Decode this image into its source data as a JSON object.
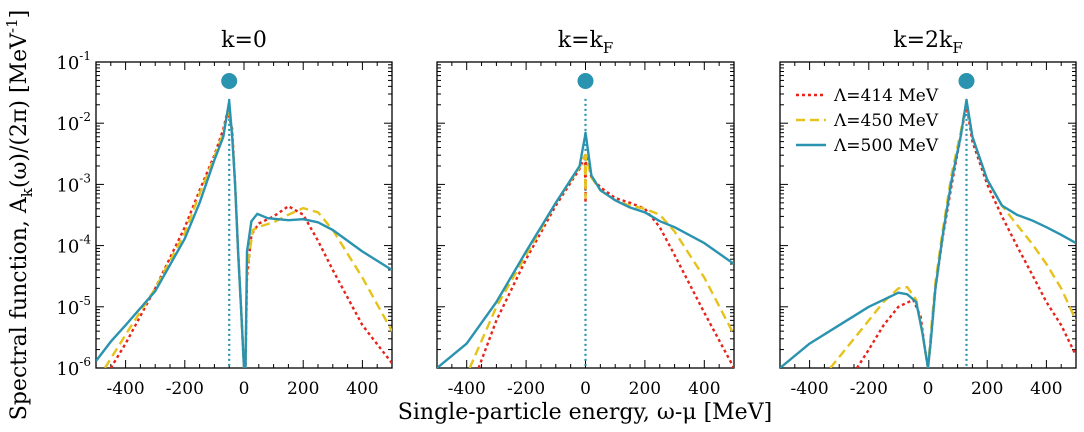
{
  "chart_data": {
    "type": "line",
    "ylabel_main": "Spectral function, A",
    "ylabel_sub": "k",
    "ylabel_rest": "(ω)/(2π) [MeV",
    "ylabel_exp": "-1",
    "ylabel_close": "]",
    "xlabel": "Single-particle energy, ω-μ [MeV]",
    "xlim": [
      -500,
      500
    ],
    "ylim_log10": [
      -6,
      -1
    ],
    "x_ticks": [
      -400,
      -200,
      0,
      200,
      400
    ],
    "x_tick_labels": [
      "-400",
      "-200",
      "0",
      "200",
      "400"
    ],
    "y_tick_exponents": [
      -1,
      -2,
      -3,
      -4,
      -5,
      -6
    ],
    "y_tick_base": "10",
    "y_tick_exp_labels": [
      "-1",
      "-2",
      "-3",
      "-4",
      "-5",
      "-6"
    ],
    "legend": {
      "placement": "top-right of third panel",
      "entries": [
        {
          "label": "Λ=414 MeV",
          "series": 0
        },
        {
          "label": "Λ=450 MeV",
          "series": 1
        },
        {
          "label": "Λ=500 MeV",
          "series": 2
        }
      ]
    },
    "series_styles": [
      {
        "name": "Λ=414 MeV",
        "color": "#e8231a",
        "dash": "3,3"
      },
      {
        "name": "Λ=450 MeV",
        "color": "#e6c21a",
        "dash": "9,5"
      },
      {
        "name": "Λ=500 MeV",
        "color": "#2a93b0",
        "dash": ""
      }
    ],
    "marker_color": "#2a93b0",
    "panels": [
      {
        "title_main": "k=0",
        "title_sub": "",
        "quasiparticle_energy": -50,
        "series": [
          {
            "name": "Λ=414 MeV",
            "points": [
              [
                -450,
                1e-06
              ],
              [
                -400,
                2.5e-06
              ],
              [
                -300,
                2e-05
              ],
              [
                -200,
                0.0002
              ],
              [
                -150,
                0.0008
              ],
              [
                -100,
                0.003
              ],
              [
                -70,
                0.008
              ],
              [
                -55,
                0.016
              ],
              [
                -40,
                0.008
              ],
              [
                -30,
                0.001
              ],
              [
                -20,
                8e-05
              ],
              [
                -10,
                1e-05
              ],
              [
                0,
                1e-06
              ],
              [
                5,
                1e-06
              ],
              [
                10,
                3e-05
              ],
              [
                25,
                0.00015
              ],
              [
                50,
                0.00023
              ],
              [
                100,
                0.0003
              ],
              [
                150,
                0.00044
              ],
              [
                200,
                0.00032
              ],
              [
                250,
                0.00012
              ],
              [
                300,
                4e-05
              ],
              [
                400,
                5e-06
              ],
              [
                500,
                1.2e-06
              ]
            ]
          },
          {
            "name": "Λ=450 MeV",
            "points": [
              [
                -470,
                1e-06
              ],
              [
                -400,
                3.5e-06
              ],
              [
                -300,
                2e-05
              ],
              [
                -200,
                0.00016
              ],
              [
                -150,
                0.0007
              ],
              [
                -100,
                0.0028
              ],
              [
                -70,
                0.007
              ],
              [
                -52,
                0.018
              ],
              [
                -40,
                0.007
              ],
              [
                -30,
                0.001
              ],
              [
                -20,
                8e-05
              ],
              [
                -10,
                1e-05
              ],
              [
                0,
                1e-06
              ],
              [
                5,
                1e-06
              ],
              [
                10,
                4e-05
              ],
              [
                30,
                0.00018
              ],
              [
                60,
                0.00021
              ],
              [
                100,
                0.00024
              ],
              [
                150,
                0.00032
              ],
              [
                200,
                0.00041
              ],
              [
                250,
                0.00035
              ],
              [
                300,
                0.00018
              ],
              [
                400,
                3e-05
              ],
              [
                500,
                4e-06
              ]
            ]
          },
          {
            "name": "Λ=500 MeV",
            "points": [
              [
                -500,
                1.3e-06
              ],
              [
                -450,
                2.7e-06
              ],
              [
                -400,
                5e-06
              ],
              [
                -300,
                1.8e-05
              ],
              [
                -200,
                0.00013
              ],
              [
                -150,
                0.0005
              ],
              [
                -100,
                0.0025
              ],
              [
                -70,
                0.006
              ],
              [
                -50,
                0.023
              ],
              [
                -40,
                0.006
              ],
              [
                -30,
                0.001
              ],
              [
                -20,
                8e-05
              ],
              [
                -10,
                1e-05
              ],
              [
                0,
                1e-06
              ],
              [
                5,
                1e-06
              ],
              [
                10,
                8e-05
              ],
              [
                25,
                0.00025
              ],
              [
                45,
                0.00033
              ],
              [
                80,
                0.00028
              ],
              [
                150,
                0.00026
              ],
              [
                200,
                0.00027
              ],
              [
                250,
                0.00024
              ],
              [
                300,
                0.00018
              ],
              [
                400,
                8e-05
              ],
              [
                500,
                4e-05
              ]
            ]
          }
        ]
      },
      {
        "title_main": "k=k",
        "title_sub": "F",
        "quasiparticle_energy": 0,
        "series": [
          {
            "name": "Λ=414 MeV",
            "points": [
              [
                -360,
                1e-06
              ],
              [
                -300,
                6e-06
              ],
              [
                -200,
                6e-05
              ],
              [
                -100,
                0.00045
              ],
              [
                -20,
                0.0018
              ],
              [
                -2,
                0.003
              ],
              [
                0,
                0.0005
              ],
              [
                2,
                0.003
              ],
              [
                20,
                0.0013
              ],
              [
                50,
                0.0009
              ],
              [
                100,
                0.0006
              ],
              [
                150,
                0.0005
              ],
              [
                200,
                0.0004
              ],
              [
                250,
                0.0002
              ],
              [
                300,
                7e-05
              ],
              [
                400,
                8e-06
              ],
              [
                500,
                1e-06
              ]
            ]
          },
          {
            "name": "Λ=450 MeV",
            "points": [
              [
                -390,
                1e-06
              ],
              [
                -300,
                1e-05
              ],
              [
                -200,
                7e-05
              ],
              [
                -100,
                0.0005
              ],
              [
                -20,
                0.0019
              ],
              [
                -2,
                0.003
              ],
              [
                0,
                0.0006
              ],
              [
                2,
                0.003
              ],
              [
                20,
                0.0013
              ],
              [
                50,
                0.0008
              ],
              [
                100,
                0.00055
              ],
              [
                150,
                0.00045
              ],
              [
                200,
                0.0004
              ],
              [
                250,
                0.00032
              ],
              [
                300,
                0.00017
              ],
              [
                400,
                3e-05
              ],
              [
                500,
                3.5e-06
              ]
            ]
          },
          {
            "name": "Λ=500 MeV",
            "points": [
              [
                -500,
                1e-06
              ],
              [
                -400,
                2.5e-06
              ],
              [
                -300,
                1.2e-05
              ],
              [
                -200,
                8e-05
              ],
              [
                -100,
                0.0005
              ],
              [
                -20,
                0.002
              ],
              [
                -2,
                0.006
              ],
              [
                0,
                0.007
              ],
              [
                2,
                0.006
              ],
              [
                20,
                0.0014
              ],
              [
                50,
                0.0008
              ],
              [
                100,
                0.00055
              ],
              [
                150,
                0.00042
              ],
              [
                200,
                0.00035
              ],
              [
                250,
                0.00025
              ],
              [
                300,
                0.0002
              ],
              [
                400,
                0.00011
              ],
              [
                500,
                5e-05
              ]
            ]
          }
        ]
      },
      {
        "title_main": "k=2k",
        "title_sub": "F",
        "quasiparticle_energy": 130,
        "series": [
          {
            "name": "Λ=414 MeV",
            "points": [
              [
                -240,
                1e-06
              ],
              [
                -200,
                2e-06
              ],
              [
                -150,
                5e-06
              ],
              [
                -100,
                1e-05
              ],
              [
                -50,
                1.3e-05
              ],
              [
                -25,
                7e-06
              ],
              [
                -10,
                2e-06
              ],
              [
                0,
                1e-06
              ],
              [
                10,
                3e-06
              ],
              [
                25,
                2e-05
              ],
              [
                50,
                0.00014
              ],
              [
                80,
                0.001
              ],
              [
                110,
                0.006
              ],
              [
                130,
                0.02
              ],
              [
                150,
                0.005
              ],
              [
                200,
                0.001
              ],
              [
                250,
                0.0003
              ],
              [
                300,
                0.0001
              ],
              [
                350,
                3.5e-05
              ],
              [
                400,
                1.2e-05
              ],
              [
                450,
                5e-06
              ],
              [
                500,
                1.6e-06
              ]
            ]
          },
          {
            "name": "Λ=450 MeV",
            "points": [
              [
                -330,
                1e-06
              ],
              [
                -250,
                3e-06
              ],
              [
                -200,
                6e-06
              ],
              [
                -150,
                1.2e-05
              ],
              [
                -100,
                2e-05
              ],
              [
                -70,
                2.1e-05
              ],
              [
                -40,
                1.3e-05
              ],
              [
                -20,
                4e-06
              ],
              [
                0,
                1e-06
              ],
              [
                10,
                4e-06
              ],
              [
                25,
                2.5e-05
              ],
              [
                50,
                0.00018
              ],
              [
                80,
                0.0015
              ],
              [
                110,
                0.007
              ],
              [
                130,
                0.022
              ],
              [
                150,
                0.006
              ],
              [
                200,
                0.0012
              ],
              [
                250,
                0.00045
              ],
              [
                300,
                0.00022
              ],
              [
                350,
                0.00011
              ],
              [
                400,
                5e-05
              ],
              [
                450,
                2e-05
              ],
              [
                500,
                6e-06
              ]
            ]
          },
          {
            "name": "Λ=500 MeV",
            "points": [
              [
                -500,
                1e-06
              ],
              [
                -400,
                2.5e-06
              ],
              [
                -300,
                5e-06
              ],
              [
                -200,
                1e-05
              ],
              [
                -100,
                1.7e-05
              ],
              [
                -70,
                1.6e-05
              ],
              [
                -40,
                1.2e-05
              ],
              [
                -20,
                4e-06
              ],
              [
                0,
                1e-06
              ],
              [
                10,
                3e-06
              ],
              [
                25,
                2e-05
              ],
              [
                50,
                0.00015
              ],
              [
                80,
                0.0012
              ],
              [
                110,
                0.006
              ],
              [
                130,
                0.024
              ],
              [
                150,
                0.006
              ],
              [
                200,
                0.0012
              ],
              [
                250,
                0.00045
              ],
              [
                300,
                0.00032
              ],
              [
                350,
                0.00026
              ],
              [
                400,
                0.0002
              ],
              [
                450,
                0.00015
              ],
              [
                500,
                0.00011
              ]
            ]
          }
        ]
      }
    ]
  }
}
